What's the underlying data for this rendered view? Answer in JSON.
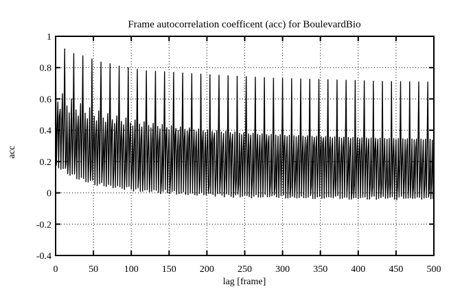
{
  "page": {
    "background": "#ffffff",
    "foreground": "#000000"
  },
  "chart_data": {
    "type": "line",
    "title": "Frame autocorrelation coefficent (acc) for BoulevardBio",
    "xlabel": "lag [frame]",
    "ylabel": "acc",
    "xlim": [
      0,
      500
    ],
    "ylim": [
      -0.4,
      1
    ],
    "grid": "dotted",
    "legend": "none",
    "line_color": "#000000",
    "background": "#ffffff",
    "xticks": [
      {
        "label": "0",
        "v": 0
      },
      {
        "label": "50",
        "v": 50
      },
      {
        "label": "100",
        "v": 100
      },
      {
        "label": "150",
        "v": 150
      },
      {
        "label": "200",
        "v": 200
      },
      {
        "label": "250",
        "v": 250
      },
      {
        "label": "300",
        "v": 300
      },
      {
        "label": "350",
        "v": 350
      },
      {
        "label": "400",
        "v": 400
      },
      {
        "label": "450",
        "v": 450
      },
      {
        "label": "500",
        "v": 500
      }
    ],
    "yticks": [
      {
        "label": "1",
        "v": 1
      },
      {
        "label": "0.8",
        "v": 0.8
      },
      {
        "label": "0.6",
        "v": 0.6
      },
      {
        "label": "0.4",
        "v": 0.4
      },
      {
        "label": "0.2",
        "v": 0.2
      },
      {
        "label": "0",
        "v": 0
      },
      {
        "label": "-0.2",
        "v": -0.2
      },
      {
        "label": "-0.4",
        "v": -0.4
      }
    ],
    "structure": {
      "description": "Frame-size autocorrelation of MPEG video trace: value 1 at lag 0; tall I-frame spikes every 12 frames decaying 0.92 to 0.71; P-frame plateau every 3 frames decaying 0.55 to 0.34; dense B-frame band whose scalloped floor (period 12) decays 0.19 to -0.02",
      "gop_period": 12,
      "p_period": 3,
      "lag0_value": 1.0,
      "i_spike_envelope": [
        [
          12,
          0.92
        ],
        [
          24,
          0.89
        ],
        [
          36,
          0.875
        ],
        [
          48,
          0.855
        ],
        [
          60,
          0.835
        ],
        [
          72,
          0.825
        ],
        [
          84,
          0.81
        ],
        [
          96,
          0.8
        ],
        [
          108,
          0.79
        ],
        [
          120,
          0.78
        ],
        [
          156,
          0.77
        ],
        [
          192,
          0.758
        ],
        [
          240,
          0.745
        ],
        [
          288,
          0.733
        ],
        [
          336,
          0.726
        ],
        [
          384,
          0.72
        ],
        [
          432,
          0.712
        ],
        [
          500,
          0.707
        ]
      ],
      "p_plateau_envelope": [
        [
          3,
          0.545
        ],
        [
          24,
          0.505
        ],
        [
          50,
          0.468
        ],
        [
          75,
          0.45
        ],
        [
          100,
          0.433
        ],
        [
          150,
          0.408
        ],
        [
          200,
          0.39
        ],
        [
          250,
          0.376
        ],
        [
          300,
          0.366
        ],
        [
          350,
          0.358
        ],
        [
          400,
          0.351
        ],
        [
          450,
          0.346
        ],
        [
          500,
          0.342
        ]
      ],
      "p9_boost": [
        [
          9,
          0.1
        ],
        [
          36,
          0.075
        ],
        [
          72,
          0.05
        ],
        [
          120,
          0.028
        ],
        [
          200,
          0.012
        ],
        [
          300,
          0.004
        ],
        [
          500,
          0.0
        ]
      ],
      "b_floor_envelope": [
        [
          1,
          0.19
        ],
        [
          30,
          0.115
        ],
        [
          60,
          0.07
        ],
        [
          90,
          0.048
        ],
        [
          120,
          0.032
        ],
        [
          150,
          0.02
        ],
        [
          180,
          0.01
        ],
        [
          220,
          0.0
        ],
        [
          260,
          -0.008
        ],
        [
          320,
          -0.015
        ],
        [
          400,
          -0.02
        ],
        [
          500,
          -0.023
        ]
      ],
      "scallop_depth": [
        [
          0,
          0.03
        ],
        [
          200,
          0.022
        ],
        [
          500,
          0.016
        ]
      ],
      "fill_offset": 0.04,
      "fill_jitter": 0.13,
      "sliver_probability": 0.28
    }
  }
}
